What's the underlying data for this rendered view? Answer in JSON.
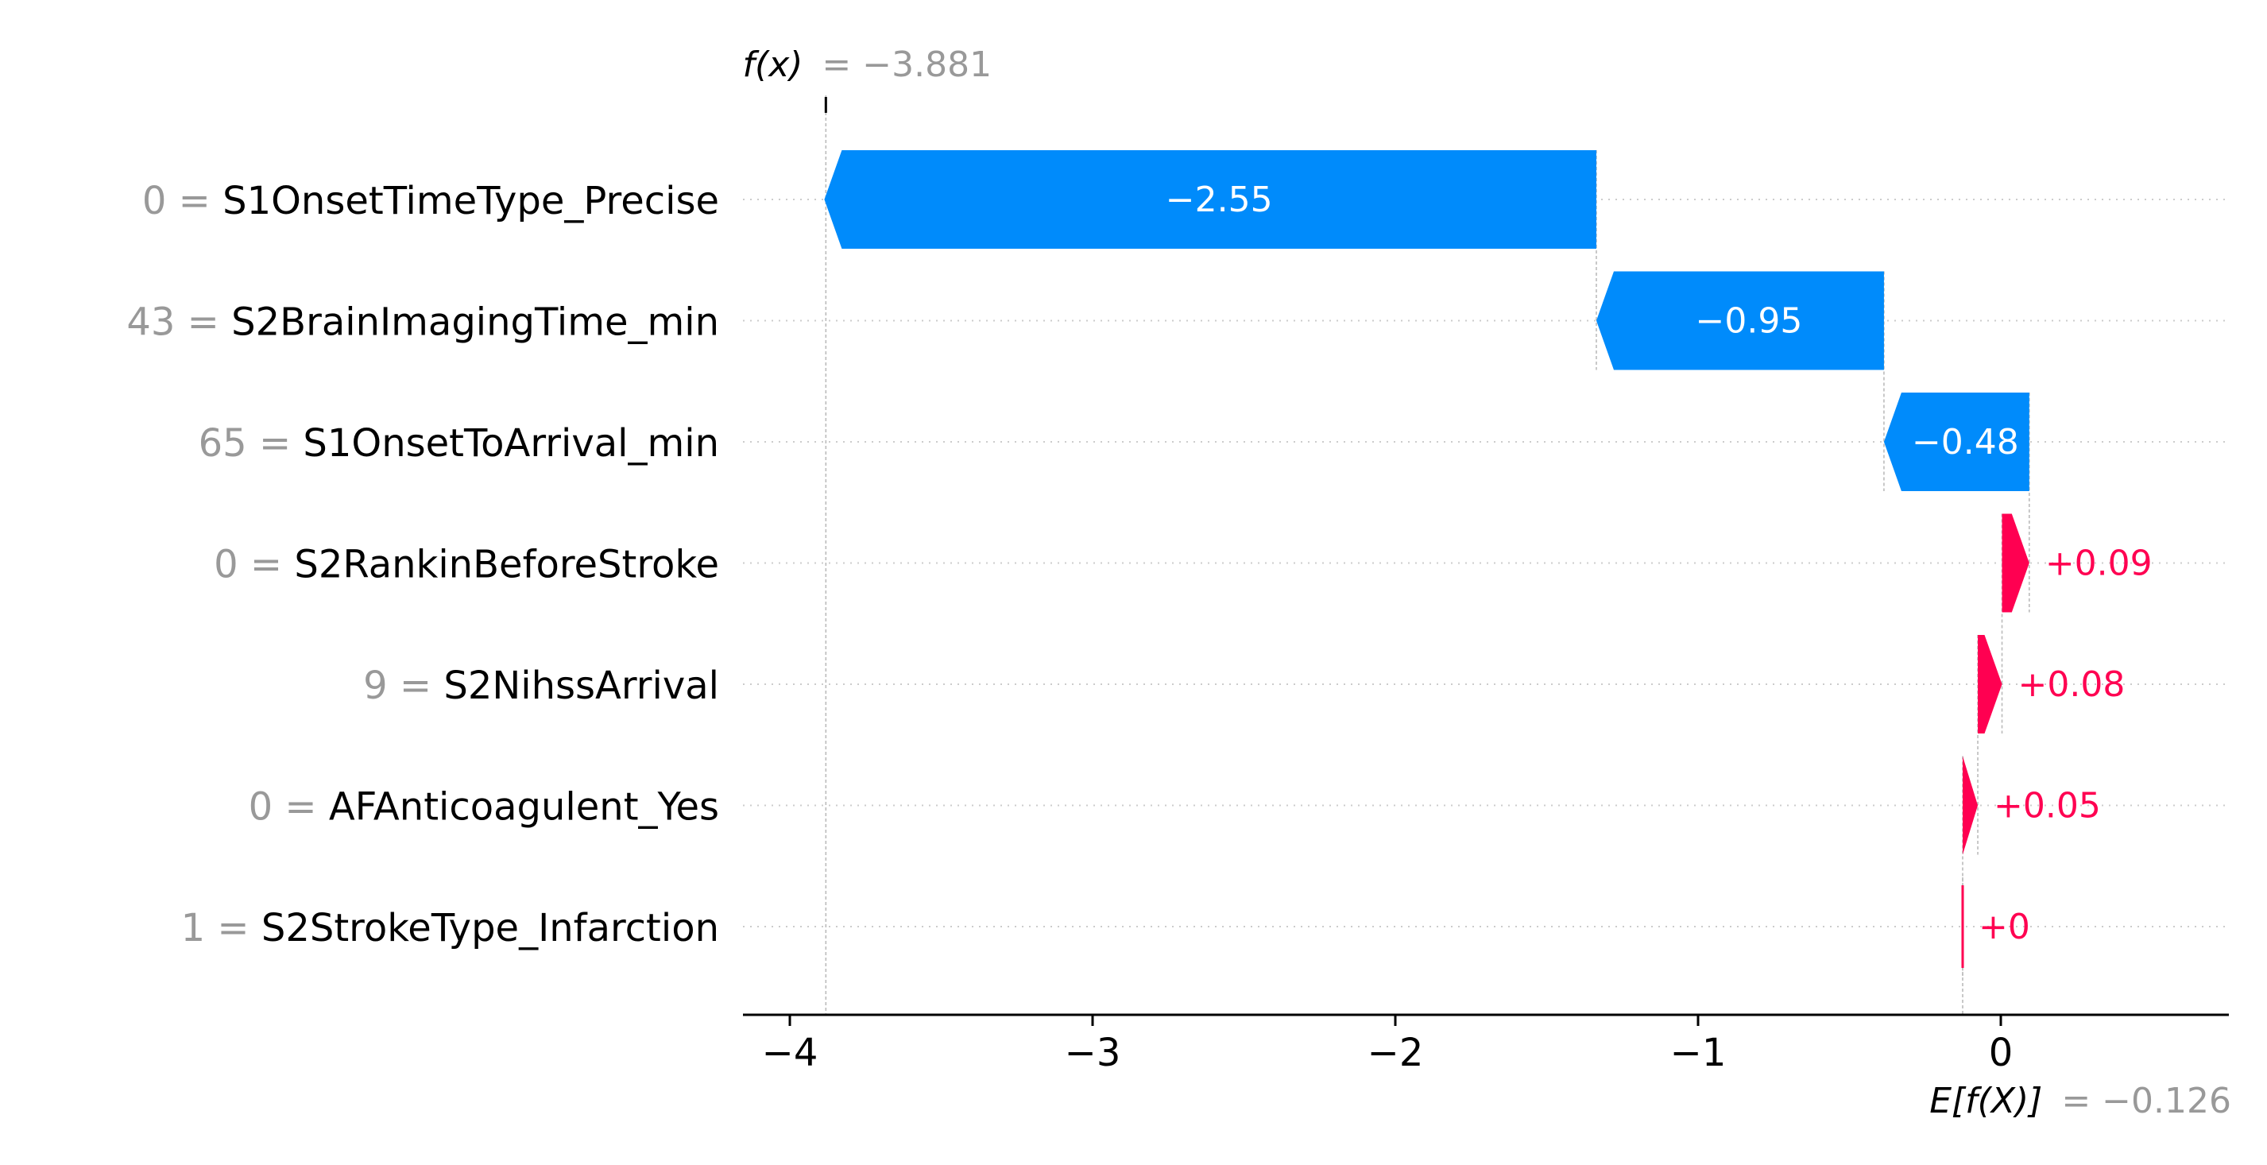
{
  "chart_data": {
    "type": "waterfall",
    "fx_label": "f(x)",
    "fx_value": "= −3.881",
    "efx_label": "E[f(X)]",
    "efx_value": "= −0.126",
    "base_value": -0.126,
    "final_value": -3.881,
    "x_ticks": [
      -4,
      -3,
      -2,
      -1,
      0
    ],
    "x_tick_labels": [
      "−4",
      "−3",
      "−2",
      "−1",
      "0"
    ],
    "xlim": [
      -4.15,
      0.75
    ],
    "features": [
      {
        "value": "0",
        "name": "S1OnsetTimeType_Precise",
        "shap": -2.55,
        "label": "−2.55"
      },
      {
        "value": "43",
        "name": "S2BrainImagingTime_min",
        "shap": -0.95,
        "label": "−0.95"
      },
      {
        "value": "65",
        "name": "S1OnsetToArrival_min",
        "shap": -0.48,
        "label": "−0.48"
      },
      {
        "value": "0",
        "name": "S2RankinBeforeStroke",
        "shap": 0.09,
        "label": "+0.09"
      },
      {
        "value": "9",
        "name": "S2NihssArrival",
        "shap": 0.08,
        "label": "+0.08"
      },
      {
        "value": "0",
        "name": "AFAnticoagulent_Yes",
        "shap": 0.05,
        "label": "+0.05"
      },
      {
        "value": "1",
        "name": "S2StrokeType_Infarction",
        "shap": 0.0,
        "label": "+0"
      }
    ],
    "colors": {
      "negative": "#008bfb",
      "positive": "#ff0051",
      "gridline": "#cccccc",
      "connector": "#bbbbbb",
      "axis": "#000000",
      "muted_text": "#999999"
    }
  }
}
